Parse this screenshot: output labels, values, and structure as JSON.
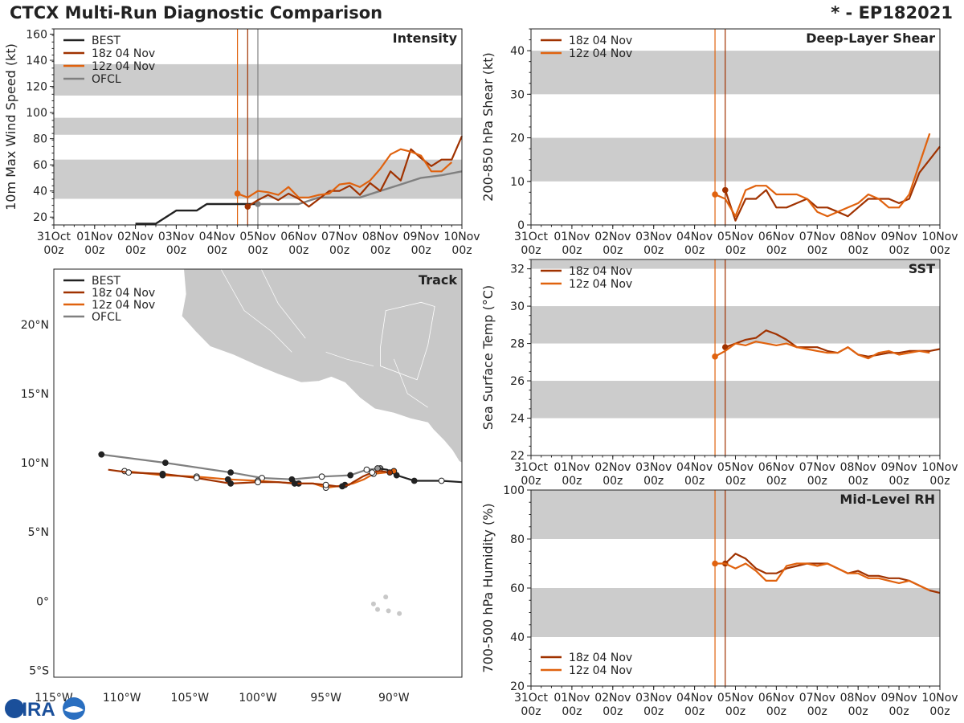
{
  "header": {
    "title": "CTCX Multi-Run Diagnostic Comparison",
    "storm": "* - EP182021"
  },
  "colors": {
    "best": "#222222",
    "run18": "#a03200",
    "run12": "#e0620e",
    "ofcl": "#808080",
    "band": "#cccccc",
    "land": "#c8c8c8"
  },
  "time_axis": {
    "labels_day": [
      "31Oct",
      "01Nov",
      "02Nov",
      "03Nov",
      "04Nov",
      "05Nov",
      "06Nov",
      "07Nov",
      "08Nov",
      "09Nov",
      "10Nov"
    ],
    "labels_hour": [
      "00z",
      "00z",
      "00z",
      "00z",
      "00z",
      "00z",
      "00z",
      "00z",
      "00z",
      "00z",
      "00z"
    ]
  },
  "logo": {
    "text": "CIRA"
  },
  "chart_data": [
    {
      "id": "intensity",
      "type": "line",
      "title": "Intensity",
      "ylabel": "10m Max Wind Speed (kt)",
      "xlim": [
        0,
        10
      ],
      "ylim": [
        14,
        164
      ],
      "yticks": [
        20,
        40,
        60,
        80,
        100,
        120,
        140,
        160
      ],
      "bands": [
        [
          34,
          64
        ],
        [
          83,
          96
        ],
        [
          113,
          137
        ]
      ],
      "vlines": [
        {
          "x": 4.5,
          "series": "run12"
        },
        {
          "x": 4.75,
          "series": "run18"
        },
        {
          "x": 5.0,
          "series": "ofcl"
        }
      ],
      "legend": [
        "BEST",
        "18z 04 Nov",
        "12z 04 Nov",
        "OFCL"
      ],
      "series": [
        {
          "name": "BEST",
          "key": "best",
          "x": [
            2.0,
            2.5,
            3.0,
            3.5,
            3.75,
            4.0,
            4.25,
            4.5,
            4.75,
            5.0
          ],
          "y": [
            15,
            15,
            25,
            25,
            30,
            30,
            30,
            30,
            30,
            30
          ]
        },
        {
          "name": "OFCL",
          "key": "ofcl",
          "x": [
            5.0,
            5.25,
            5.5,
            6.0,
            6.5,
            7.0,
            7.5,
            8.0,
            8.5,
            9.0,
            9.5,
            10.0
          ],
          "y": [
            30,
            30,
            30,
            30,
            35,
            35,
            35,
            40,
            45,
            50,
            52,
            55
          ],
          "marker_start": true
        },
        {
          "name": "18z 04 Nov",
          "key": "run18",
          "x": [
            4.75,
            5.0,
            5.25,
            5.5,
            5.75,
            6.0,
            6.25,
            6.5,
            6.75,
            7.0,
            7.25,
            7.5,
            7.75,
            8.0,
            8.25,
            8.5,
            8.75,
            9.0,
            9.25,
            9.5,
            9.75,
            10.0
          ],
          "y": [
            28,
            33,
            37,
            33,
            38,
            34,
            28,
            34,
            40,
            40,
            44,
            37,
            46,
            40,
            55,
            48,
            72,
            65,
            59,
            64,
            64,
            82
          ],
          "marker_start": true
        },
        {
          "name": "12z 04 Nov",
          "key": "run12",
          "x": [
            4.5,
            4.75,
            5.0,
            5.25,
            5.5,
            5.75,
            6.0,
            6.25,
            6.5,
            6.75,
            7.0,
            7.25,
            7.5,
            7.75,
            8.0,
            8.25,
            8.5,
            8.75,
            9.0,
            9.25,
            9.5,
            9.75
          ],
          "y": [
            38,
            35,
            40,
            39,
            37,
            43,
            35,
            35,
            37,
            38,
            45,
            46,
            43,
            48,
            57,
            68,
            72,
            70,
            67,
            55,
            55,
            62
          ],
          "marker_start": true
        }
      ]
    },
    {
      "id": "shear",
      "type": "line",
      "title": "Deep-Layer Shear",
      "ylabel": "200-850 hPa Shear (kt)",
      "xlim": [
        0,
        10
      ],
      "ylim": [
        0,
        45
      ],
      "yticks": [
        0,
        10,
        20,
        30,
        40
      ],
      "bands": [
        [
          10,
          20
        ],
        [
          30,
          40
        ]
      ],
      "vlines": [
        {
          "x": 4.5,
          "series": "run12"
        },
        {
          "x": 4.75,
          "series": "run18"
        }
      ],
      "legend": [
        "18z 04 Nov",
        "12z 04 Nov"
      ],
      "series": [
        {
          "name": "18z 04 Nov",
          "key": "run18",
          "x": [
            4.75,
            5.0,
            5.25,
            5.5,
            5.75,
            6.0,
            6.25,
            6.5,
            6.75,
            7.0,
            7.25,
            7.5,
            7.75,
            8.0,
            8.25,
            8.5,
            8.75,
            9.0,
            9.25,
            9.5,
            9.75,
            10.0
          ],
          "y": [
            8,
            1,
            6,
            6,
            8,
            4,
            4,
            5,
            6,
            4,
            4,
            3,
            2,
            4,
            6,
            6,
            6,
            5,
            6,
            12,
            15,
            18
          ],
          "marker_start": true
        },
        {
          "name": "12z 04 Nov",
          "key": "run12",
          "x": [
            4.5,
            4.75,
            5.0,
            5.25,
            5.5,
            5.75,
            6.0,
            6.25,
            6.5,
            6.75,
            7.0,
            7.25,
            7.5,
            7.75,
            8.0,
            8.25,
            8.5,
            8.75,
            9.0,
            9.25,
            9.5,
            9.75
          ],
          "y": [
            7,
            6,
            2,
            8,
            9,
            9,
            7,
            7,
            7,
            6,
            3,
            2,
            3,
            4,
            5,
            7,
            6,
            4,
            4,
            7,
            14,
            21
          ],
          "marker_start": true
        }
      ]
    },
    {
      "id": "sst",
      "type": "line",
      "title": "SST",
      "ylabel": "Sea Surface Temp (°C)",
      "xlim": [
        0,
        10
      ],
      "ylim": [
        22,
        32.5
      ],
      "yticks": [
        22,
        24,
        26,
        28,
        30,
        32
      ],
      "bands": [
        [
          24,
          26
        ],
        [
          28,
          30
        ],
        [
          32,
          32.5
        ]
      ],
      "vlines": [
        {
          "x": 4.5,
          "series": "run12"
        },
        {
          "x": 4.75,
          "series": "run18"
        }
      ],
      "legend": [
        "18z 04 Nov",
        "12z 04 Nov"
      ],
      "series": [
        {
          "name": "18z 04 Nov",
          "key": "run18",
          "x": [
            4.75,
            5.0,
            5.25,
            5.5,
            5.75,
            6.0,
            6.25,
            6.5,
            6.75,
            7.0,
            7.25,
            7.5,
            7.75,
            8.0,
            8.25,
            8.5,
            8.75,
            9.0,
            9.25,
            9.5,
            9.75,
            10.0
          ],
          "y": [
            27.8,
            28.0,
            28.2,
            28.3,
            28.7,
            28.5,
            28.2,
            27.8,
            27.8,
            27.8,
            27.6,
            27.5,
            27.8,
            27.4,
            27.3,
            27.4,
            27.5,
            27.5,
            27.6,
            27.6,
            27.6,
            27.7
          ],
          "marker_start": true
        },
        {
          "name": "12z 04 Nov",
          "key": "run12",
          "x": [
            4.5,
            4.75,
            5.0,
            5.25,
            5.5,
            5.75,
            6.0,
            6.25,
            6.5,
            6.75,
            7.0,
            7.25,
            7.5,
            7.75,
            8.0,
            8.25,
            8.5,
            8.75,
            9.0,
            9.25,
            9.5,
            9.75
          ],
          "y": [
            27.3,
            27.6,
            28.0,
            27.9,
            28.1,
            28.0,
            27.9,
            28.0,
            27.8,
            27.7,
            27.6,
            27.5,
            27.5,
            27.8,
            27.4,
            27.2,
            27.5,
            27.6,
            27.4,
            27.5,
            27.6,
            27.5
          ],
          "marker_start": true
        }
      ]
    },
    {
      "id": "rh",
      "type": "line",
      "title": "Mid-Level RH",
      "ylabel": "700-500 hPa Humidity (%)",
      "xlim": [
        0,
        10
      ],
      "ylim": [
        20,
        100
      ],
      "yticks": [
        20,
        40,
        60,
        80,
        100
      ],
      "bands": [
        [
          40,
          60
        ],
        [
          80,
          100
        ]
      ],
      "vlines": [
        {
          "x": 4.5,
          "series": "run12"
        },
        {
          "x": 4.75,
          "series": "run18"
        }
      ],
      "legend": [
        "18z 04 Nov",
        "12z 04 Nov"
      ],
      "legend_loc": "lower-left",
      "series": [
        {
          "name": "18z 04 Nov",
          "key": "run18",
          "x": [
            4.75,
            5.0,
            5.25,
            5.5,
            5.75,
            6.0,
            6.25,
            6.5,
            6.75,
            7.0,
            7.25,
            7.5,
            7.75,
            8.0,
            8.25,
            8.5,
            8.75,
            9.0,
            9.25,
            9.5,
            9.75,
            10.0
          ],
          "y": [
            70,
            74,
            72,
            68,
            66,
            66,
            68,
            69,
            70,
            70,
            70,
            68,
            66,
            67,
            65,
            65,
            64,
            64,
            63,
            61,
            59,
            58
          ],
          "marker_start": true
        },
        {
          "name": "12z 04 Nov",
          "key": "run12",
          "x": [
            4.5,
            4.75,
            5.0,
            5.25,
            5.5,
            5.75,
            6.0,
            6.25,
            6.5,
            6.75,
            7.0,
            7.25,
            7.5,
            7.75,
            8.0,
            8.25,
            8.5,
            8.75,
            9.0,
            9.25,
            9.5,
            9.75
          ],
          "y": [
            70,
            70,
            68,
            70,
            67,
            63,
            63,
            69,
            70,
            70,
            69,
            70,
            68,
            66,
            66,
            64,
            64,
            63,
            62,
            63,
            61,
            59
          ],
          "marker_start": true
        }
      ]
    },
    {
      "id": "track",
      "type": "scatter",
      "title": "Track",
      "xlabel_ticks": [
        "115°W",
        "110°W",
        "105°W",
        "100°W",
        "95°W",
        "90°W"
      ],
      "ylabel_ticks": [
        "5°S",
        "0°",
        "5°N",
        "10°N",
        "15°N",
        "20°N"
      ],
      "lon_range": [
        -115,
        -85
      ],
      "lat_range": [
        -5.5,
        24
      ],
      "lon_ticks": [
        -115,
        -110,
        -105,
        -100,
        -95,
        -90
      ],
      "lat_ticks": [
        -5,
        0,
        5,
        10,
        15,
        20
      ],
      "legend": [
        "BEST",
        "18z 04 Nov",
        "12z 04 Nov",
        "OFCL"
      ],
      "series": [
        {
          "name": "BEST",
          "key": "best",
          "lon": [
            -91.2,
            -90.5,
            -89.8,
            -88.5,
            -86.5,
            -85.0
          ],
          "lat": [
            9.6,
            9.5,
            9.1,
            8.7,
            8.7,
            8.6
          ],
          "markers": [
            {
              "i": 0,
              "fill": "#999999"
            },
            {
              "i": 2,
              "fill": "#222222"
            },
            {
              "i": 3,
              "fill": "#222222"
            },
            {
              "i": 4,
              "fill": "#ffffff"
            }
          ]
        },
        {
          "name": "OFCL",
          "key": "ofcl",
          "lon": [
            -91.0,
            -92.0,
            -93.2,
            -95.3,
            -97.5,
            -99.7,
            -102.0,
            -106.8,
            -111.5
          ],
          "lat": [
            9.6,
            9.5,
            9.1,
            9.0,
            8.8,
            8.9,
            9.3,
            10.0,
            10.6
          ],
          "markers": [
            {
              "i": 0,
              "fill": "#999999"
            },
            {
              "i": 1,
              "fill": "#ffffff"
            },
            {
              "i": 2,
              "fill": "#222222"
            },
            {
              "i": 3,
              "fill": "#ffffff"
            },
            {
              "i": 4,
              "fill": "#222222"
            },
            {
              "i": 5,
              "fill": "#ffffff"
            },
            {
              "i": 6,
              "fill": "#222222"
            },
            {
              "i": 7,
              "fill": "#222222"
            },
            {
              "i": 8,
              "fill": "#222222"
            }
          ]
        },
        {
          "name": "18z 04 Nov",
          "key": "run18",
          "lon": [
            -90.3,
            -91.0,
            -91.6,
            -92.3,
            -93.0,
            -93.3,
            -93.8,
            -94.2,
            -95.0,
            -96.0,
            -97.3,
            -98.5,
            -100.0,
            -102.0,
            -104.5,
            -107.0,
            -109.5,
            -111.0
          ],
          "lat": [
            9.3,
            9.4,
            9.3,
            9.0,
            8.6,
            8.4,
            8.3,
            8.3,
            8.4,
            8.5,
            8.5,
            8.6,
            8.6,
            8.5,
            8.9,
            9.2,
            9.3,
            9.5
          ],
          "markers": [
            {
              "i": 0,
              "fill": "#a03200"
            },
            {
              "i": 2,
              "fill": "#ffffff"
            },
            {
              "i": 6,
              "fill": "#222222"
            },
            {
              "i": 8,
              "fill": "#ffffff"
            },
            {
              "i": 10,
              "fill": "#222222"
            },
            {
              "i": 12,
              "fill": "#ffffff"
            },
            {
              "i": 13,
              "fill": "#222222"
            },
            {
              "i": 14,
              "fill": "#ffffff"
            },
            {
              "i": 15,
              "fill": "#222222"
            },
            {
              "i": 16,
              "fill": "#ffffff"
            }
          ]
        },
        {
          "name": "12z 04 Nov",
          "key": "run12",
          "lon": [
            -90.0,
            -90.6,
            -91.5,
            -92.2,
            -93.0,
            -93.6,
            -94.2,
            -95.0,
            -95.9,
            -97.0,
            -98.5,
            -100.0,
            -102.2,
            -104.5,
            -107.0,
            -109.8
          ],
          "lat": [
            9.4,
            9.3,
            9.2,
            8.8,
            8.5,
            8.4,
            8.3,
            8.2,
            8.5,
            8.5,
            8.6,
            8.7,
            8.8,
            9.0,
            9.1,
            9.4
          ],
          "markers": [
            {
              "i": 0,
              "fill": "#e0620e"
            },
            {
              "i": 2,
              "fill": "#ffffff"
            },
            {
              "i": 5,
              "fill": "#222222"
            },
            {
              "i": 7,
              "fill": "#ffffff"
            },
            {
              "i": 9,
              "fill": "#222222"
            },
            {
              "i": 11,
              "fill": "#ffffff"
            },
            {
              "i": 12,
              "fill": "#222222"
            },
            {
              "i": 13,
              "fill": "#ffffff"
            },
            {
              "i": 14,
              "fill": "#222222"
            },
            {
              "i": 15,
              "fill": "#ffffff"
            }
          ]
        }
      ]
    }
  ]
}
